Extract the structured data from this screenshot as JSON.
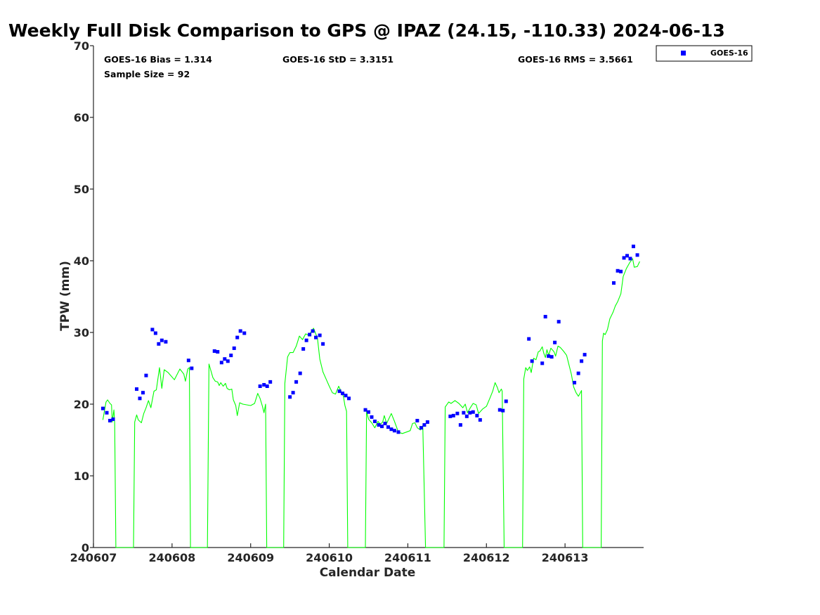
{
  "chart_data": {
    "type": "scatter",
    "title": "Weekly Full Disk Comparison to GPS @ IPAZ (24.15, -110.33) 2024-06-13",
    "xlabel": "Calendar Date",
    "ylabel": "TPW (mm)",
    "xlim": [
      240607.0,
      240614.0
    ],
    "ylim": [
      0,
      70
    ],
    "x_ticks": [
      {
        "value": 240607,
        "label": "240607"
      },
      {
        "value": 240608,
        "label": "240608"
      },
      {
        "value": 240609,
        "label": "240609"
      },
      {
        "value": 240610,
        "label": "240610"
      },
      {
        "value": 240611,
        "label": "240611"
      },
      {
        "value": 240612,
        "label": "240612"
      },
      {
        "value": 240613,
        "label": "240613"
      }
    ],
    "y_ticks": [
      {
        "value": 0,
        "label": "0"
      },
      {
        "value": 10,
        "label": "10"
      },
      {
        "value": 20,
        "label": "20"
      },
      {
        "value": 30,
        "label": "30"
      },
      {
        "value": 40,
        "label": "40"
      },
      {
        "value": 50,
        "label": "50"
      },
      {
        "value": 60,
        "label": "60"
      },
      {
        "value": 70,
        "label": "70"
      }
    ],
    "grid": false,
    "legend_position": "top-right",
    "stats": {
      "bias": "GOES-16 Bias = 1.314",
      "std": "GOES-16 StD = 3.3151",
      "rms": "GOES-16 RMS = 3.5661",
      "sample": "Sample Size = 92"
    },
    "series": [
      {
        "name": "GOES-16",
        "kind": "scatter",
        "color": "#0000ff",
        "points": [
          [
            240607.12,
            19.4
          ],
          [
            240607.17,
            18.8
          ],
          [
            240607.21,
            17.7
          ],
          [
            240607.25,
            17.9
          ],
          [
            240607.55,
            22.1
          ],
          [
            240607.59,
            20.8
          ],
          [
            240607.63,
            21.6
          ],
          [
            240607.67,
            24.0
          ],
          [
            240607.75,
            30.4
          ],
          [
            240607.79,
            29.9
          ],
          [
            240607.83,
            28.4
          ],
          [
            240607.87,
            28.9
          ],
          [
            240607.92,
            28.7
          ],
          [
            240608.21,
            26.1
          ],
          [
            240608.25,
            25.0
          ],
          [
            240608.54,
            27.4
          ],
          [
            240608.58,
            27.3
          ],
          [
            240608.63,
            25.8
          ],
          [
            240608.67,
            26.3
          ],
          [
            240608.71,
            26.0
          ],
          [
            240608.75,
            26.8
          ],
          [
            240608.79,
            27.8
          ],
          [
            240608.83,
            29.3
          ],
          [
            240608.87,
            30.2
          ],
          [
            240608.92,
            29.9
          ],
          [
            240609.12,
            22.5
          ],
          [
            240609.17,
            22.7
          ],
          [
            240609.21,
            22.5
          ],
          [
            240609.25,
            23.1
          ],
          [
            240609.5,
            21.0
          ],
          [
            240609.54,
            21.6
          ],
          [
            240609.58,
            23.1
          ],
          [
            240609.63,
            24.3
          ],
          [
            240609.67,
            27.7
          ],
          [
            240609.71,
            28.9
          ],
          [
            240609.75,
            29.7
          ],
          [
            240609.79,
            30.2
          ],
          [
            240609.83,
            29.3
          ],
          [
            240609.88,
            29.6
          ],
          [
            240609.92,
            28.4
          ],
          [
            240610.13,
            21.8
          ],
          [
            240610.17,
            21.5
          ],
          [
            240610.21,
            21.2
          ],
          [
            240610.25,
            20.8
          ],
          [
            240610.46,
            19.2
          ],
          [
            240610.5,
            18.9
          ],
          [
            240610.54,
            18.2
          ],
          [
            240610.58,
            17.6
          ],
          [
            240610.63,
            17.1
          ],
          [
            240610.67,
            16.9
          ],
          [
            240610.71,
            17.3
          ],
          [
            240610.75,
            16.8
          ],
          [
            240610.79,
            16.5
          ],
          [
            240610.83,
            16.3
          ],
          [
            240610.88,
            16.1
          ],
          [
            240611.12,
            17.7
          ],
          [
            240611.17,
            16.7
          ],
          [
            240611.21,
            17.1
          ],
          [
            240611.25,
            17.5
          ],
          [
            240611.54,
            18.3
          ],
          [
            240611.58,
            18.4
          ],
          [
            240611.63,
            18.7
          ],
          [
            240611.67,
            17.1
          ],
          [
            240611.71,
            18.8
          ],
          [
            240611.75,
            18.3
          ],
          [
            240611.79,
            18.8
          ],
          [
            240611.83,
            18.9
          ],
          [
            240611.88,
            18.4
          ],
          [
            240611.92,
            17.8
          ],
          [
            240612.17,
            19.2
          ],
          [
            240612.21,
            19.1
          ],
          [
            240612.25,
            20.4
          ],
          [
            240612.54,
            29.1
          ],
          [
            240612.58,
            26.0
          ],
          [
            240612.71,
            25.7
          ],
          [
            240612.75,
            32.2
          ],
          [
            240612.79,
            26.7
          ],
          [
            240612.83,
            26.6
          ],
          [
            240612.87,
            28.6
          ],
          [
            240612.92,
            31.5
          ],
          [
            240613.12,
            23.0
          ],
          [
            240613.17,
            24.3
          ],
          [
            240613.21,
            26.0
          ],
          [
            240613.25,
            26.9
          ],
          [
            240613.62,
            36.9
          ],
          [
            240613.67,
            38.6
          ],
          [
            240613.71,
            38.5
          ],
          [
            240613.75,
            40.4
          ],
          [
            240613.79,
            40.7
          ],
          [
            240613.83,
            40.3
          ],
          [
            240613.87,
            42.0
          ],
          [
            240613.92,
            40.8
          ]
        ]
      },
      {
        "name": "",
        "kind": "line",
        "color": "#00ff00",
        "points": [
          [
            240607.12,
            17.8
          ],
          [
            240607.16,
            20.3
          ],
          [
            240607.18,
            20.6
          ],
          [
            240607.21,
            20.1
          ],
          [
            240607.23,
            19.9
          ],
          [
            240607.24,
            17.5
          ],
          [
            240607.26,
            19.2
          ],
          [
            240607.27,
            17.4
          ],
          [
            240607.285,
            0
          ],
          [
            240607.51,
            0
          ],
          [
            240607.525,
            17.5
          ],
          [
            240607.55,
            18.5
          ],
          [
            240607.57,
            17.8
          ],
          [
            240607.61,
            17.4
          ],
          [
            240607.64,
            18.7
          ],
          [
            240607.67,
            19.5
          ],
          [
            240607.7,
            20.5
          ],
          [
            240607.73,
            19.5
          ],
          [
            240607.77,
            21.8
          ],
          [
            240607.8,
            22.0
          ],
          [
            240607.84,
            25.1
          ],
          [
            240607.87,
            22.2
          ],
          [
            240607.9,
            24.8
          ],
          [
            240607.95,
            24.4
          ],
          [
            240608.03,
            23.4
          ],
          [
            240608.1,
            24.9
          ],
          [
            240608.15,
            24.2
          ],
          [
            240608.17,
            23.2
          ],
          [
            240608.2,
            24.9
          ],
          [
            240608.22,
            25.1
          ],
          [
            240608.235,
            0
          ],
          [
            240608.45,
            0
          ],
          [
            240608.47,
            25.6
          ],
          [
            240608.52,
            23.7
          ],
          [
            240608.55,
            23.2
          ],
          [
            240608.58,
            23.1
          ],
          [
            240608.6,
            22.6
          ],
          [
            240608.62,
            23.0
          ],
          [
            240608.65,
            22.5
          ],
          [
            240608.68,
            22.9
          ],
          [
            240608.7,
            22.2
          ],
          [
            240608.73,
            22.0
          ],
          [
            240608.76,
            22.1
          ],
          [
            240608.78,
            20.6
          ],
          [
            240608.81,
            19.8
          ],
          [
            240608.83,
            18.4
          ],
          [
            240608.86,
            20.2
          ],
          [
            240608.9,
            20.0
          ],
          [
            240608.95,
            19.9
          ],
          [
            240609.0,
            19.8
          ],
          [
            240609.05,
            20.1
          ],
          [
            240609.09,
            21.5
          ],
          [
            240609.12,
            20.8
          ],
          [
            240609.15,
            19.7
          ],
          [
            240609.17,
            18.8
          ],
          [
            240609.19,
            20.0
          ],
          [
            240609.205,
            0
          ],
          [
            240609.42,
            0
          ],
          [
            240609.435,
            22.9
          ],
          [
            240609.47,
            26.6
          ],
          [
            240609.5,
            27.2
          ],
          [
            240609.54,
            27.2
          ],
          [
            240609.58,
            28.1
          ],
          [
            240609.62,
            29.5
          ],
          [
            240609.66,
            29.0
          ],
          [
            240609.7,
            29.8
          ],
          [
            240609.74,
            29.6
          ],
          [
            240609.8,
            30.6
          ],
          [
            240609.85,
            29.2
          ],
          [
            240609.88,
            26.3
          ],
          [
            240609.92,
            24.5
          ],
          [
            240609.96,
            23.5
          ],
          [
            240610.0,
            22.5
          ],
          [
            240610.04,
            21.6
          ],
          [
            240610.08,
            21.4
          ],
          [
            240610.12,
            22.5
          ],
          [
            240610.15,
            21.8
          ],
          [
            240610.18,
            21.1
          ],
          [
            240610.2,
            19.8
          ],
          [
            240610.22,
            19.0
          ],
          [
            240610.235,
            0
          ],
          [
            240610.46,
            0
          ],
          [
            240610.475,
            19.0
          ],
          [
            240610.5,
            17.9
          ],
          [
            240610.54,
            17.4
          ],
          [
            240610.58,
            16.7
          ],
          [
            240610.62,
            17.6
          ],
          [
            240610.65,
            17.2
          ],
          [
            240610.68,
            17.5
          ],
          [
            240610.7,
            18.4
          ],
          [
            240610.73,
            17.3
          ],
          [
            240610.76,
            18.0
          ],
          [
            240610.79,
            18.7
          ],
          [
            240610.83,
            17.6
          ],
          [
            240610.88,
            16.1
          ],
          [
            240610.93,
            15.9
          ],
          [
            240610.98,
            16.1
          ],
          [
            240611.03,
            16.3
          ],
          [
            240611.06,
            17.3
          ],
          [
            240611.09,
            17.4
          ],
          [
            240611.12,
            16.7
          ],
          [
            240611.16,
            16.4
          ],
          [
            240611.19,
            17.0
          ],
          [
            240611.225,
            0
          ],
          [
            240611.46,
            0
          ],
          [
            240611.475,
            19.6
          ],
          [
            240611.52,
            20.3
          ],
          [
            240611.55,
            20.1
          ],
          [
            240611.6,
            20.5
          ],
          [
            240611.65,
            20.1
          ],
          [
            240611.7,
            19.5
          ],
          [
            240611.73,
            20.0
          ],
          [
            240611.76,
            18.8
          ],
          [
            240611.79,
            19.4
          ],
          [
            240611.83,
            20.1
          ],
          [
            240611.87,
            19.9
          ],
          [
            240611.9,
            18.7
          ],
          [
            240611.95,
            19.3
          ],
          [
            240612.0,
            19.7
          ],
          [
            240612.05,
            21.0
          ],
          [
            240612.08,
            21.8
          ],
          [
            240612.11,
            23.0
          ],
          [
            240612.14,
            22.3
          ],
          [
            240612.16,
            21.6
          ],
          [
            240612.19,
            22.1
          ],
          [
            240612.2,
            21.8
          ],
          [
            240612.225,
            0
          ],
          [
            240612.46,
            0
          ],
          [
            240612.475,
            23.5
          ],
          [
            240612.5,
            25.1
          ],
          [
            240612.52,
            24.7
          ],
          [
            240612.55,
            25.2
          ],
          [
            240612.57,
            24.4
          ],
          [
            240612.6,
            26.4
          ],
          [
            240612.63,
            26.2
          ],
          [
            240612.66,
            27.3
          ],
          [
            240612.68,
            27.4
          ],
          [
            240612.71,
            28.0
          ],
          [
            240612.73,
            27.1
          ],
          [
            240612.75,
            26.5
          ],
          [
            240612.77,
            27.6
          ],
          [
            240612.79,
            26.8
          ],
          [
            240612.82,
            27.8
          ],
          [
            240612.86,
            27.3
          ],
          [
            240612.88,
            26.7
          ],
          [
            240612.91,
            28.1
          ],
          [
            240612.94,
            27.9
          ],
          [
            240612.98,
            27.4
          ],
          [
            240613.02,
            26.8
          ],
          [
            240613.05,
            25.5
          ],
          [
            240613.08,
            24.2
          ],
          [
            240613.11,
            22.4
          ],
          [
            240613.14,
            21.6
          ],
          [
            240613.17,
            21.1
          ],
          [
            240613.19,
            21.5
          ],
          [
            240613.21,
            21.9
          ],
          [
            240613.225,
            0
          ],
          [
            240613.46,
            0
          ],
          [
            240613.475,
            28.8
          ],
          [
            240613.49,
            29.9
          ],
          [
            240613.51,
            29.7
          ],
          [
            240613.54,
            30.4
          ],
          [
            240613.57,
            31.9
          ],
          [
            240613.61,
            32.8
          ],
          [
            240613.64,
            33.7
          ],
          [
            240613.67,
            34.3
          ],
          [
            240613.71,
            35.4
          ],
          [
            240613.74,
            37.8
          ],
          [
            240613.78,
            38.9
          ],
          [
            240613.82,
            39.7
          ],
          [
            240613.86,
            40.3
          ],
          [
            240613.88,
            39.1
          ],
          [
            240613.92,
            39.2
          ],
          [
            240613.95,
            39.9
          ]
        ]
      }
    ]
  }
}
